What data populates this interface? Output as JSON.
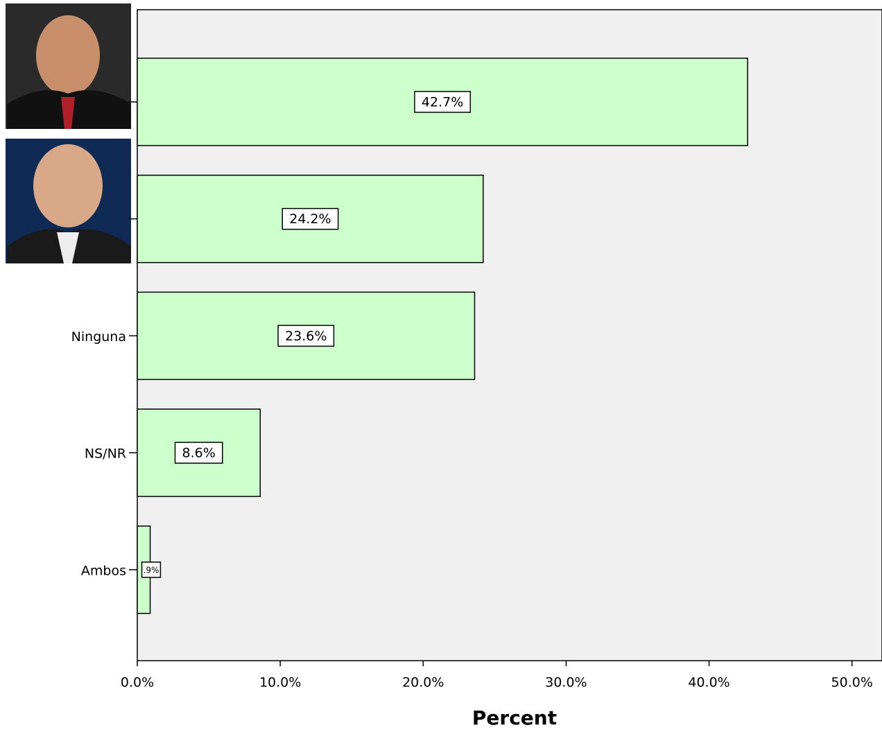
{
  "chart_data": {
    "type": "bar",
    "orientation": "horizontal",
    "x_label": "Percent",
    "categories": [
      null,
      null,
      "Ninguna",
      "NS/NR",
      "Ambos"
    ],
    "values": [
      42.7,
      24.2,
      23.6,
      8.6,
      0.9
    ],
    "value_labels": [
      "42.7%",
      "24.2%",
      "23.6%",
      "8.6%",
      ".9%"
    ],
    "color": "#ccffcc",
    "xlim": [
      0,
      52.1
    ],
    "xticks": [
      {
        "value": 0,
        "label": "0.0%"
      },
      {
        "value": 10,
        "label": "10.0%"
      },
      {
        "value": 20,
        "label": "20.0%"
      },
      {
        "value": 30,
        "label": "30.0%"
      },
      {
        "value": 40,
        "label": "40.0%"
      },
      {
        "value": 50,
        "label": "50.0%"
      }
    ],
    "grid": false
  }
}
